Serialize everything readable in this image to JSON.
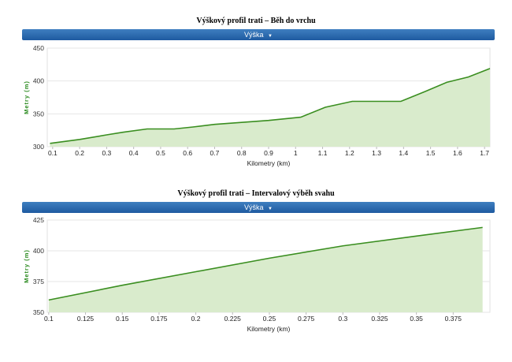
{
  "charts": [
    {
      "title": "Výškový profil trati – Běh do vrchu",
      "dropdown_label": "Výška",
      "dropdown_icon": "caret-down-icon",
      "fill_color": "#d9ebcc",
      "line_color": "#3a8e20"
    },
    {
      "title": "Výškový profil trati – Intervalový výběh svahu",
      "dropdown_label": "Výška",
      "dropdown_icon": "caret-down-icon",
      "fill_color": "#d9ebcc",
      "line_color": "#3a8e20"
    }
  ],
  "chart_data": [
    {
      "type": "area",
      "title": "Výškový profil trati – Běh do vrchu",
      "xlabel": "Kilometry (km)",
      "ylabel": "Metry (m)",
      "xlim": [
        0.08,
        1.72
      ],
      "ylim": [
        300,
        450
      ],
      "xticks": [
        "0.1",
        "0.2",
        "0.3",
        "0.4",
        "0.5",
        "0.6",
        "0.7",
        "0.8",
        "0.9",
        "1",
        "1.1",
        "1.2",
        "1.3",
        "1.4",
        "1.5",
        "1.6",
        "1.7"
      ],
      "xtick_values": [
        0.1,
        0.2,
        0.3,
        0.4,
        0.5,
        0.6,
        0.7,
        0.8,
        0.9,
        1.0,
        1.1,
        1.2,
        1.3,
        1.4,
        1.5,
        1.6,
        1.7
      ],
      "yticks": [
        300,
        350,
        400,
        450
      ],
      "grid": true,
      "x": [
        0.09,
        0.2,
        0.3,
        0.36,
        0.45,
        0.55,
        0.62,
        0.7,
        0.8,
        0.9,
        1.02,
        1.11,
        1.21,
        1.3,
        1.39,
        1.48,
        1.56,
        1.64,
        1.72
      ],
      "y": [
        305,
        311,
        318,
        322,
        327,
        327,
        330,
        334,
        337,
        340,
        345,
        360,
        369,
        369,
        369,
        384,
        398,
        406,
        419
      ]
    },
    {
      "type": "area",
      "title": "Výškový profil trati – Intervalový výběh svahu",
      "xlabel": "Kilometry (km)",
      "ylabel": "Metry (m)",
      "xlim": [
        0.099,
        0.4
      ],
      "ylim": [
        350,
        425
      ],
      "xticks": [
        "0.1",
        "0.125",
        "0.15",
        "0.175",
        "0.2",
        "0.225",
        "0.25",
        "0.275",
        "0.3",
        "0.325",
        "0.35",
        "0.375"
      ],
      "xtick_values": [
        0.1,
        0.125,
        0.15,
        0.175,
        0.2,
        0.225,
        0.25,
        0.275,
        0.3,
        0.325,
        0.35,
        0.375
      ],
      "yticks": [
        350,
        375,
        400,
        425
      ],
      "grid": true,
      "x": [
        0.1,
        0.15,
        0.2,
        0.25,
        0.3,
        0.35,
        0.395
      ],
      "y": [
        360,
        372,
        383,
        394,
        404,
        412,
        419
      ]
    }
  ]
}
